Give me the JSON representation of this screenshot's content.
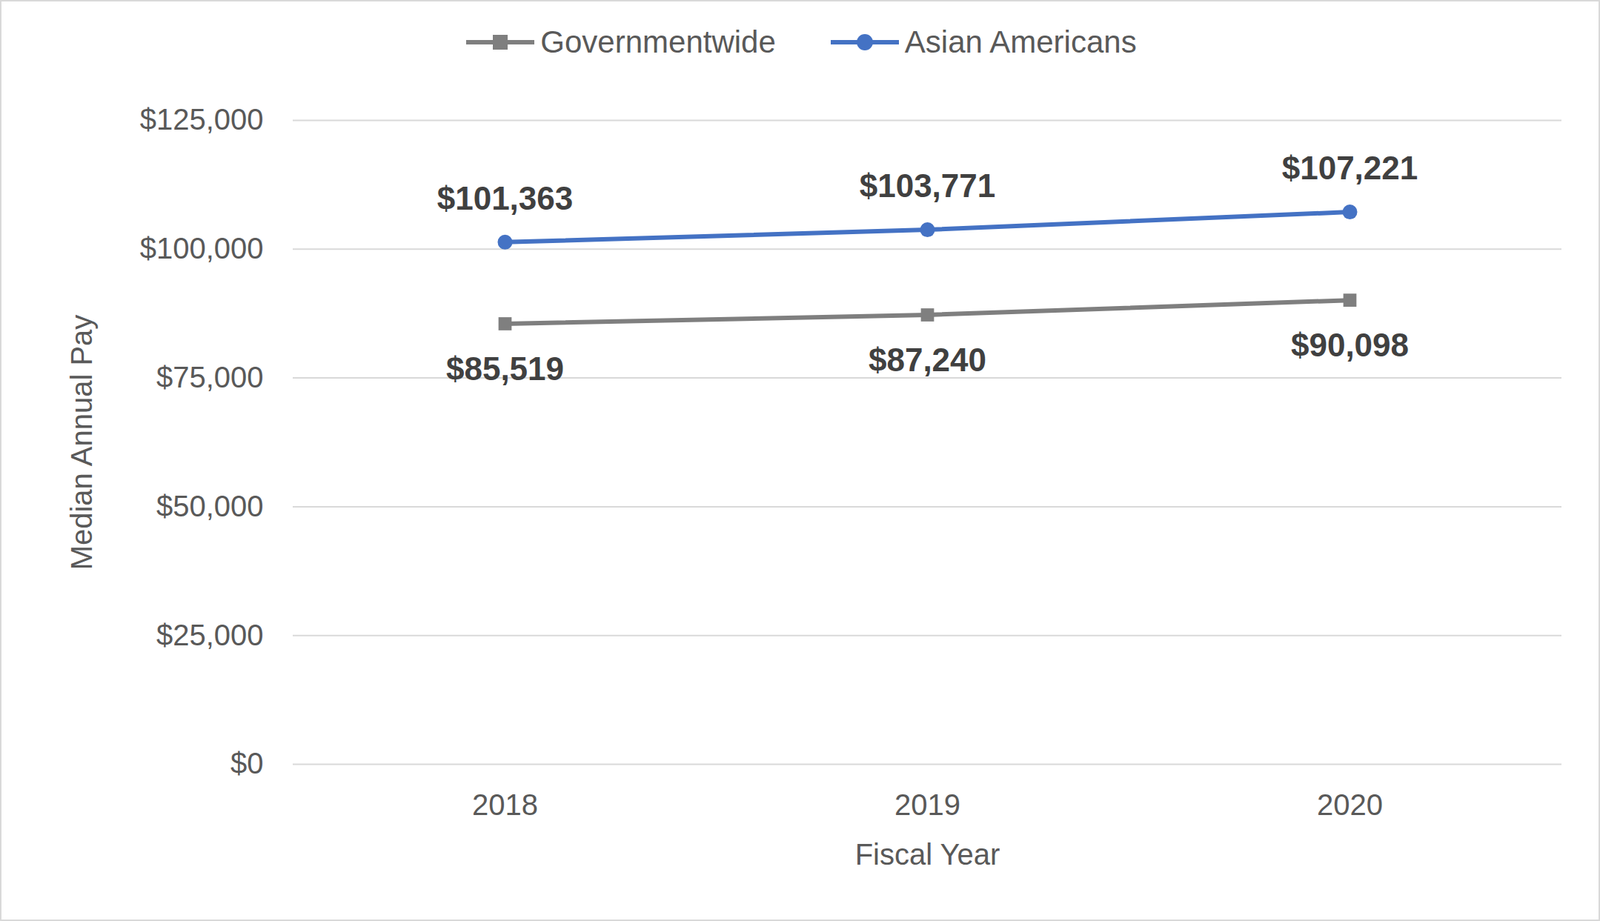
{
  "chart_data": {
    "type": "line",
    "x_label": "Fiscal Year",
    "y_label": "Median Annual Pay",
    "categories": [
      "2018",
      "2019",
      "2020"
    ],
    "series": [
      {
        "name": "Governmentwide",
        "color": "#7f7f7f",
        "marker": "square",
        "values": [
          85519,
          87240,
          90098
        ],
        "value_labels": [
          "$85,519",
          "$87,240",
          "$90,098"
        ]
      },
      {
        "name": "Asian Americans",
        "color": "#4472c4",
        "marker": "circle",
        "values": [
          101363,
          103771,
          107221
        ],
        "value_labels": [
          "$101,363",
          "$103,771",
          "$107,221"
        ]
      }
    ],
    "ylim": [
      0,
      125000
    ],
    "yticks": [
      {
        "value": 0,
        "label": "$0"
      },
      {
        "value": 25000,
        "label": "$25,000"
      },
      {
        "value": 50000,
        "label": "$50,000"
      },
      {
        "value": 75000,
        "label": "$75,000"
      },
      {
        "value": 100000,
        "label": "$100,000"
      },
      {
        "value": 125000,
        "label": "$125,000"
      }
    ],
    "grid": true,
    "legend": "top",
    "data_labels": true
  }
}
